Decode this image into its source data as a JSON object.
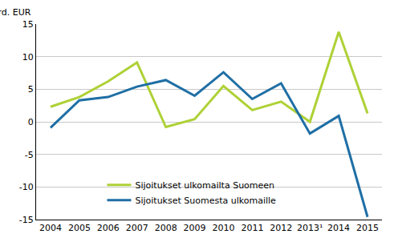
{
  "chart_data": {
    "type": "line",
    "y_label": "Mrd. EUR",
    "categories": [
      "2004",
      "2005",
      "2006",
      "2007",
      "2008",
      "2009",
      "2010",
      "2011",
      "2012",
      "2013¹",
      "2014",
      "2015"
    ],
    "series": [
      {
        "name": "Sijoitukset ulkomailta Suomeen",
        "color": "#aed136",
        "values": [
          2.3,
          3.8,
          6.2,
          9.1,
          -0.8,
          0.4,
          5.5,
          1.8,
          3.1,
          0.0,
          13.8,
          1.3
        ]
      },
      {
        "name": "Sijoitukset Suomesta ulkomaille",
        "color": "#1f6fa5",
        "values": [
          -0.9,
          3.3,
          3.8,
          5.4,
          6.4,
          4.0,
          7.6,
          3.5,
          5.9,
          -1.8,
          0.9,
          -14.6
        ]
      }
    ],
    "ylim": [
      -15,
      15
    ],
    "yticks": [
      -15,
      -10,
      -5,
      0,
      5,
      10,
      15
    ],
    "grid": true,
    "legend": "lower center"
  }
}
